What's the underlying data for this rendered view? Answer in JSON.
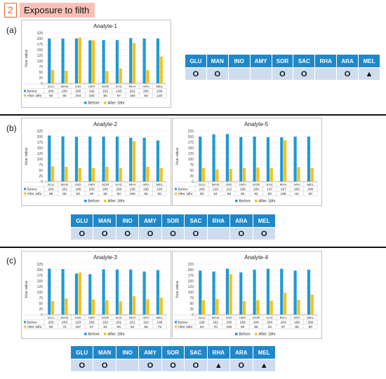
{
  "header": {
    "number": "2",
    "title": "Exposure to filth"
  },
  "colors": {
    "before": "#1e9ad6",
    "after": "#f5c01c",
    "table_header": "#1e88c9",
    "table_cell": "#cfdcef"
  },
  "panels": [
    "(a)",
    "(b)",
    "(c)"
  ],
  "chart_data": [
    {
      "type": "bar",
      "title": "Analyte-1",
      "ylabel": "Hue value",
      "ylim": [
        0,
        225
      ],
      "yticks": [
        "0",
        "25",
        "50",
        "75",
        "100",
        "125",
        "150",
        "175",
        "200",
        "225"
      ],
      "categories": [
        "GLU",
        "MAN",
        "INO",
        "AMY",
        "SOR",
        "SAC",
        "RHA",
        "ARA",
        "MEL"
      ],
      "legend": [
        "Before",
        "After 18hr"
      ],
      "series": [
        {
          "name": "Before",
          "values": [
            200,
            200,
            200,
            192,
            193,
            193,
            202,
            200,
            200
          ]
        },
        {
          "name": "After 18hr",
          "values": [
            60,
            56,
            204,
            192,
            55,
            67,
            180,
            60,
            120
          ]
        }
      ]
    },
    {
      "type": "bar",
      "title": "Analyte-2",
      "ylabel": "Hue value",
      "ylim": [
        0,
        225
      ],
      "yticks": [
        "0",
        "25",
        "50",
        "75",
        "100",
        "125",
        "150",
        "175",
        "200",
        "225"
      ],
      "categories": [
        "GLU",
        "MAN",
        "INO",
        "AMY",
        "SOR",
        "SAC",
        "RHA",
        "ARA",
        "MEL"
      ],
      "legend": [
        "Before",
        "After 18hr"
      ],
      "series": [
        {
          "name": "Before",
          "values": [
            205,
            201,
            199,
            200,
            200,
            200,
            195,
            195,
            183
          ]
        },
        {
          "name": "After 18hr",
          "values": [
            68,
            65,
            60,
            60,
            66,
            60,
            180,
            66,
            60
          ]
        }
      ]
    },
    {
      "type": "bar",
      "title": "Analyte-5",
      "ylabel": "Hue value",
      "ylim": [
        0,
        225
      ],
      "yticks": [
        "0",
        "25",
        "50",
        "75",
        "100",
        "125",
        "150",
        "175",
        "200",
        "225"
      ],
      "categories": [
        "GLU",
        "MAN",
        "INO",
        "AMY",
        "SOR",
        "SAC",
        "RHA",
        "ARA",
        "MEL"
      ],
      "legend": [
        "Before",
        "After 18hr"
      ],
      "series": [
        {
          "name": "Before",
          "values": [
            200,
            210,
            212,
            198,
            200,
            197,
            197,
            200,
            200
          ]
        },
        {
          "name": "After 18hr",
          "values": [
            60,
            54,
            56,
            60,
            62,
            60,
            185,
            64,
            60
          ]
        }
      ]
    },
    {
      "type": "bar",
      "title": "Analyte-3",
      "ylabel": "Hue value",
      "ylim": [
        0,
        225
      ],
      "yticks": [
        "0",
        "25",
        "50",
        "75",
        "100",
        "125",
        "150",
        "175",
        "200",
        "225"
      ],
      "categories": [
        "GLU",
        "MAN",
        "INO",
        "AMY",
        "SOR",
        "SAC",
        "RHA",
        "ARA",
        "MEL"
      ],
      "legend": [
        "Before",
        "After 18hr"
      ],
      "series": [
        {
          "name": "Before",
          "values": [
            205,
            203,
            183,
            180,
            202,
            201,
            201,
            192,
            198
          ]
        },
        {
          "name": "After 18hr",
          "values": [
            60,
            72,
            187,
            67,
            64,
            60,
            82,
            68,
            75
          ]
        }
      ]
    },
    {
      "type": "bar",
      "title": "Analyte-4",
      "ylabel": "Hue value",
      "ylim": [
        0,
        225
      ],
      "yticks": [
        "0",
        "25",
        "50",
        "75",
        "100",
        "125",
        "150",
        "175",
        "200",
        "225"
      ],
      "categories": [
        "GLU",
        "MAN",
        "INO",
        "AMY",
        "SOR",
        "SAC",
        "RHA",
        "ARA",
        "MEL"
      ],
      "legend": [
        "Before",
        "After 18hr"
      ],
      "series": [
        {
          "name": "Before",
          "values": [
            196,
            192,
            205,
            188,
            200,
            204,
            204,
            196,
            200
          ]
        },
        {
          "name": "After 18hr",
          "values": [
            64,
            70,
            180,
            60,
            65,
            62,
            97,
            66,
            90
          ]
        }
      ]
    }
  ],
  "tables": [
    {
      "headers": [
        "GLU",
        "MAN",
        "INO",
        "AMY",
        "SOR",
        "SAC",
        "RHA",
        "ARA",
        "MEL"
      ],
      "cells": [
        "O",
        "O",
        "",
        "",
        "O",
        "O",
        "",
        "O",
        "▲"
      ]
    },
    {
      "headers": [
        "GLU",
        "MAN",
        "INO",
        "AMY",
        "SOR",
        "SAC",
        "RHA",
        "ARA",
        "MEL"
      ],
      "cells": [
        "O",
        "O",
        "O",
        "O",
        "O",
        "O",
        "",
        "O",
        "O"
      ]
    },
    {
      "headers": [
        "GLU",
        "MAN",
        "INO",
        "AMY",
        "SOR",
        "SAC",
        "RHA",
        "ARA",
        "MEL"
      ],
      "cells": [
        "O",
        "O",
        "",
        "O",
        "O",
        "O",
        "▲",
        "O",
        "▲"
      ]
    }
  ]
}
